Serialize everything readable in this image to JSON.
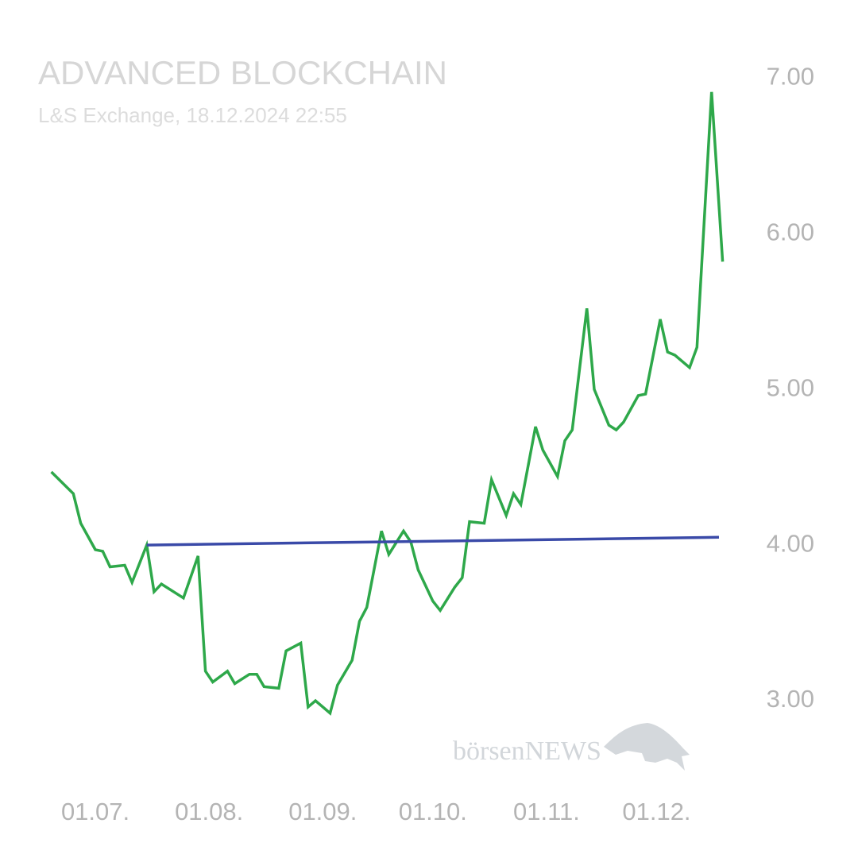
{
  "chart_data": {
    "type": "line",
    "title": "ADVANCED BLOCKCHAIN",
    "subtitle": "L&S Exchange, 18.12.2024 22:55",
    "watermark": "börsenNEWS",
    "xlim": [
      -26,
      196
    ],
    "xticks": [
      {
        "value": 0,
        "label": "01.07."
      },
      {
        "value": 31,
        "label": "01.08."
      },
      {
        "value": 62,
        "label": "01.09."
      },
      {
        "value": 92,
        "label": "01.10."
      },
      {
        "value": 123,
        "label": "01.11."
      },
      {
        "value": 153,
        "label": "01.12."
      }
    ],
    "ylim": [
      2.4,
      7.2
    ],
    "yticks": [
      {
        "value": 3,
        "label": "3.00"
      },
      {
        "value": 4,
        "label": "4.00"
      },
      {
        "value": 5,
        "label": "5.00"
      },
      {
        "value": 6,
        "label": "6.00"
      },
      {
        "value": 7,
        "label": "7.00"
      }
    ],
    "grid": false,
    "series": [
      {
        "color": "#2ea84a",
        "x": [
          -12,
          -6,
          -4,
          0,
          2,
          4,
          8,
          10,
          14,
          16,
          18,
          22,
          24,
          28,
          30,
          32,
          36,
          38,
          42,
          44,
          46,
          50,
          52,
          56,
          58,
          60,
          64,
          66,
          70,
          72,
          74,
          78,
          80,
          84,
          86,
          88,
          92,
          94,
          98,
          100,
          102,
          106,
          108,
          112,
          114,
          116,
          120,
          122,
          126,
          128,
          130,
          134,
          136,
          140,
          142,
          144,
          148,
          150,
          154,
          156,
          158,
          162,
          164,
          168,
          171
        ],
        "values": [
          4.47,
          4.33,
          4.14,
          3.97,
          3.96,
          3.86,
          3.87,
          3.76,
          4.0,
          3.7,
          3.75,
          3.69,
          3.66,
          3.93,
          3.19,
          3.12,
          3.19,
          3.11,
          3.17,
          3.17,
          3.09,
          3.08,
          3.32,
          3.37,
          2.96,
          3.0,
          2.92,
          3.1,
          3.26,
          3.51,
          3.6,
          4.09,
          3.94,
          4.09,
          4.02,
          3.84,
          3.64,
          3.58,
          3.73,
          3.79,
          4.15,
          4.14,
          4.42,
          4.19,
          4.33,
          4.26,
          4.76,
          4.61,
          4.44,
          4.67,
          4.74,
          5.52,
          5.0,
          4.77,
          4.74,
          4.79,
          4.96,
          4.97,
          5.45,
          5.24,
          5.22,
          5.14,
          5.27,
          6.91,
          5.82
        ]
      },
      {
        "color": "#3a4aa8",
        "x": [
          14,
          170
        ],
        "values": [
          4.0,
          4.05
        ]
      }
    ]
  }
}
